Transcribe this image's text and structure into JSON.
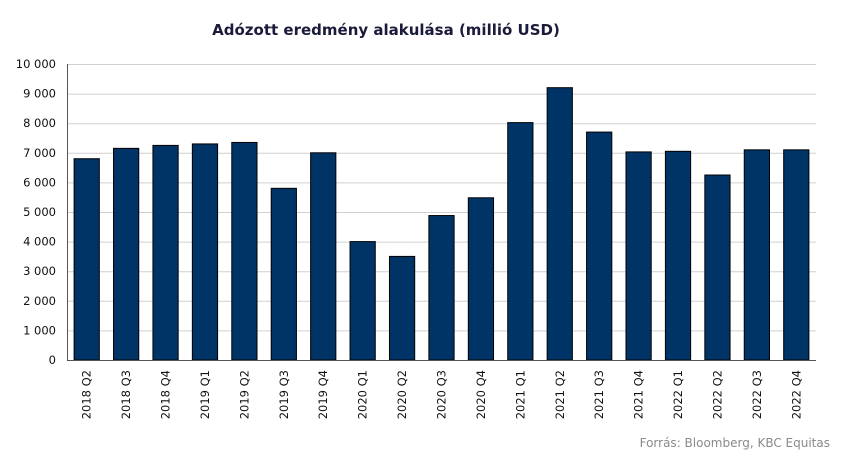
{
  "chart_data": {
    "type": "bar",
    "title": "Adózott eredmény alakulása (millió USD)",
    "categories": [
      "2018 Q2",
      "2018 Q3",
      "2018 Q4",
      "2019 Q1",
      "2019 Q2",
      "2019 Q3",
      "2019 Q4",
      "2020 Q1",
      "2020 Q2",
      "2020 Q3",
      "2020 Q4",
      "2021 Q1",
      "2021 Q2",
      "2021 Q3",
      "2021 Q4",
      "2022 Q1",
      "2022 Q2",
      "2022 Q3",
      "2022 Q4"
    ],
    "values": [
      6800,
      7150,
      7250,
      7300,
      7350,
      5800,
      7000,
      4000,
      3500,
      4880,
      5480,
      8020,
      9200,
      7700,
      7030,
      7050,
      6250,
      7100,
      7100
    ],
    "ylim": [
      0,
      10000
    ],
    "yticks": [
      0,
      1000,
      2000,
      3000,
      4000,
      5000,
      6000,
      7000,
      8000,
      9000,
      10000
    ],
    "ytick_labels": [
      "0",
      "1 000",
      "2 000",
      "3 000",
      "4 000",
      "5 000",
      "6 000",
      "7 000",
      "8 000",
      "9 000",
      "10 000"
    ],
    "xlabel": "",
    "ylabel": "",
    "grid": true,
    "bar_color": "#003366",
    "source": "Forrás: Bloomberg, KBC Equitas"
  }
}
